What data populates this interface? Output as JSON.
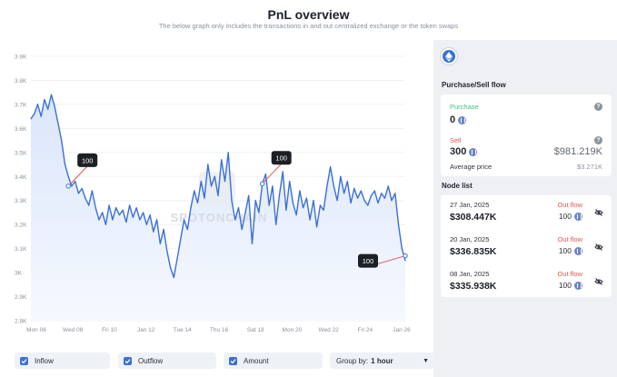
{
  "header": {
    "title": "PnL overview",
    "subtitle": "The below graph only includes the transactions in and out centralized exchange or the token swaps"
  },
  "chart_data": {
    "type": "line",
    "title": "",
    "xlabel": "",
    "ylabel": "",
    "ylim": [
      2.8,
      3.9
    ],
    "yticks": [
      "3.9K",
      "3.8K",
      "3.7K",
      "3.6K",
      "3.5K",
      "3.4K",
      "3.3K",
      "3.2K",
      "3.1K",
      "3K",
      "2.9K",
      "2.8K"
    ],
    "xticks": [
      "Mon 06",
      "Wed 08",
      "Fri 10",
      "Jan 12",
      "Tue 14",
      "Thu 16",
      "Sat 18",
      "Mon 20",
      "Wed 22",
      "Fri 24",
      "Jan 26"
    ],
    "x": [
      0,
      1,
      2,
      3,
      4,
      5,
      6,
      7,
      8,
      9,
      10,
      11,
      12,
      13,
      14,
      15,
      16,
      17,
      18,
      19,
      20,
      21,
      22,
      23,
      24,
      25,
      26,
      27,
      28,
      29,
      30,
      31,
      32,
      33,
      34,
      35,
      36,
      37,
      38,
      39,
      40,
      41,
      42,
      43,
      44,
      45,
      46,
      47,
      48,
      49,
      50,
      51,
      52,
      53,
      54,
      55,
      56,
      57,
      58,
      59,
      60,
      61,
      62,
      63,
      64,
      65,
      66,
      67,
      68,
      69,
      70,
      71,
      72,
      73,
      74,
      75,
      76,
      77,
      78,
      79,
      80,
      81,
      82,
      83,
      84,
      85,
      86,
      87,
      88,
      89,
      90,
      91,
      92,
      93,
      94,
      95,
      96,
      97,
      98,
      99,
      100,
      101,
      102,
      103,
      104,
      105,
      106,
      107,
      108,
      109,
      110
    ],
    "series": [
      {
        "name": "",
        "color": "#3b6fd8",
        "values": [
          3.64,
          3.66,
          3.7,
          3.65,
          3.72,
          3.68,
          3.74,
          3.69,
          3.62,
          3.55,
          3.45,
          3.4,
          3.36,
          3.38,
          3.33,
          3.35,
          3.31,
          3.28,
          3.34,
          3.27,
          3.22,
          3.25,
          3.2,
          3.28,
          3.22,
          3.27,
          3.24,
          3.26,
          3.21,
          3.28,
          3.23,
          3.27,
          3.22,
          3.25,
          3.2,
          3.24,
          3.17,
          3.22,
          3.12,
          3.18,
          3.09,
          3.02,
          2.98,
          3.06,
          3.14,
          3.22,
          3.18,
          3.27,
          3.34,
          3.29,
          3.38,
          3.31,
          3.45,
          3.36,
          3.4,
          3.32,
          3.47,
          3.38,
          3.5,
          3.3,
          3.22,
          3.27,
          3.18,
          3.25,
          3.32,
          3.12,
          3.3,
          3.25,
          3.37,
          3.41,
          3.28,
          3.36,
          3.2,
          3.32,
          3.42,
          3.26,
          3.38,
          3.29,
          3.24,
          3.34,
          3.27,
          3.31,
          3.22,
          3.3,
          3.19,
          3.28,
          3.26,
          3.36,
          3.44,
          3.36,
          3.3,
          3.4,
          3.33,
          3.38,
          3.29,
          3.35,
          3.31,
          3.34,
          3.3,
          3.28,
          3.32,
          3.34,
          3.29,
          3.33,
          3.31,
          3.36,
          3.3,
          3.33,
          3.2,
          3.1,
          3.05
        ]
      }
    ],
    "annotations": [
      {
        "label": "100",
        "x": 11,
        "y": 3.36
      },
      {
        "label": "100",
        "x": 68,
        "y": 3.37
      },
      {
        "label": "100",
        "x": 110,
        "y": 3.07
      }
    ],
    "grid": true,
    "legend": "none"
  },
  "watermark": "SPOTONCHAIN",
  "toggles": {
    "inflow_label": "Inflow",
    "outflow_label": "Outflow",
    "amount_label": "Amount",
    "group_by_label": "Group by:",
    "group_by_value": "1 hour"
  },
  "summary": {
    "flow_title": "Purchase/Sell flow",
    "purchase_label": "Purchase",
    "purchase_value": "0",
    "sell_label": "Sell",
    "sell_value": "300",
    "sell_usd": "$981.219K",
    "avg_price_label": "Average price",
    "avg_price_value": "$3.271K"
  },
  "node_list": {
    "title": "Node list",
    "items": [
      {
        "date": "27 Jan, 2025",
        "amount": "$308.447K",
        "flow": "Out flow",
        "count": "100"
      },
      {
        "date": "20 Jan, 2025",
        "amount": "$336.835K",
        "flow": "Out flow",
        "count": "100"
      },
      {
        "date": "08 Jan, 2025",
        "amount": "$335.938K",
        "flow": "Out flow",
        "count": "100"
      }
    ]
  },
  "icons": {
    "token": "ethereum-icon",
    "help": "question-icon",
    "coin": "eth-coin-icon",
    "hide": "eye-off-icon",
    "checkbox": "check-icon",
    "dropdown": "caret-down-icon"
  }
}
